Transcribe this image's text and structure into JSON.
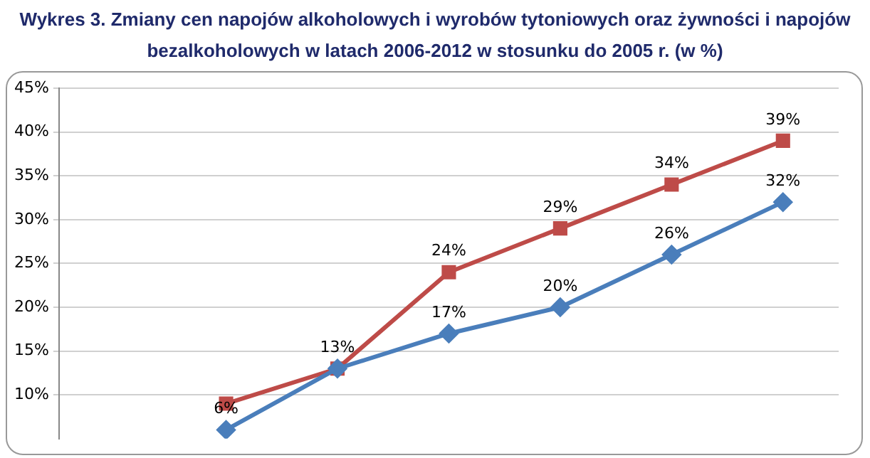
{
  "chart_data": {
    "type": "line",
    "title": "Wykres 3. Zmiany cen napojów alkoholowych i wyrobów tytoniowych oraz żywności i napojów bezalkoholowych w latach 2006-2012 w stosunku do 2005 r. (w %)",
    "categories": [
      null,
      null,
      null,
      null,
      null,
      null,
      null
    ],
    "series": [
      {
        "color": "#4a7ebb",
        "marker": "diamond",
        "values": [
          null,
          6,
          13,
          17,
          20,
          26,
          32
        ],
        "value_labels": [
          null,
          "6%",
          null,
          "17%",
          "20%",
          "26%",
          "32%"
        ]
      },
      {
        "color": "#be4b48",
        "marker": "square",
        "values": [
          null,
          9,
          13,
          24,
          29,
          34,
          39
        ],
        "value_labels": [
          null,
          null,
          "13%",
          "24%",
          "29%",
          "34%",
          "39%"
        ]
      }
    ],
    "ylim": [
      5,
      45
    ],
    "yticks": [
      {
        "value": 10,
        "label": "10%"
      },
      {
        "value": 15,
        "label": "15%"
      },
      {
        "value": 20,
        "label": "20%"
      },
      {
        "value": 25,
        "label": "25%"
      },
      {
        "value": 30,
        "label": "30%"
      },
      {
        "value": 35,
        "label": "35%"
      },
      {
        "value": 40,
        "label": "40%"
      },
      {
        "value": 45,
        "label": "45%"
      }
    ],
    "grid": "y",
    "legend": false,
    "tick_labels": "y",
    "line_style": "solid"
  }
}
